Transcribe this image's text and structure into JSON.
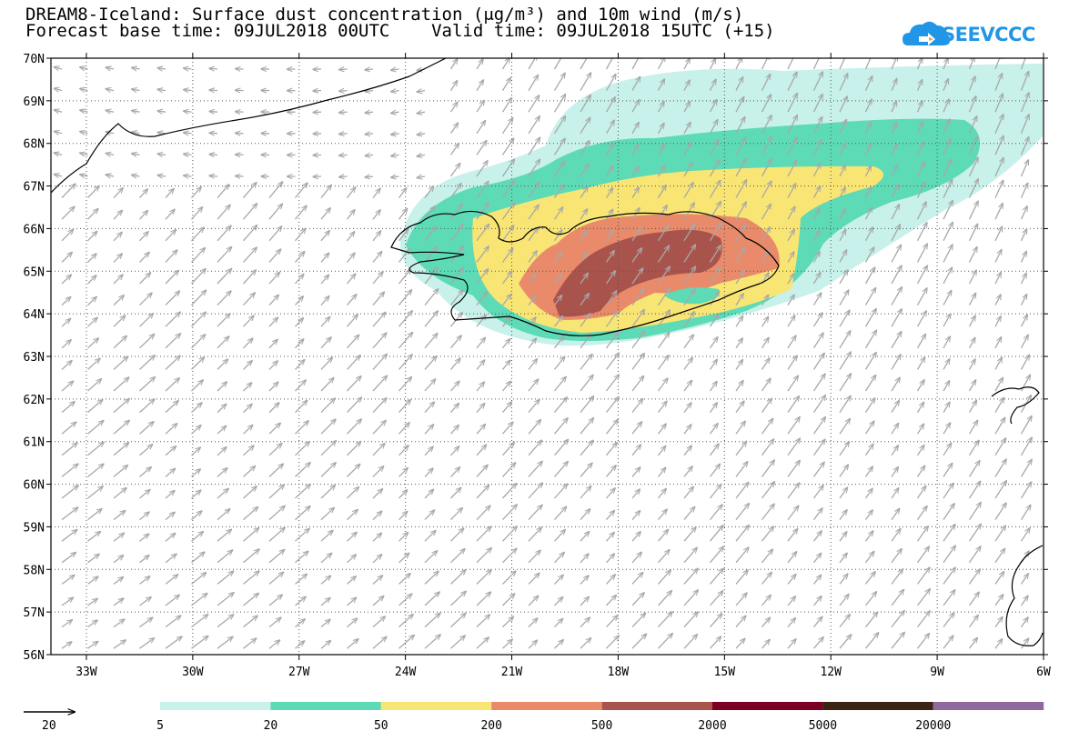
{
  "header": {
    "line1": "DREAM8-Iceland: Surface dust concentration (μg/m³) and 10m wind (m/s)",
    "line2": "Forecast base time: 09JUL2018 00UTC    Valid time: 09JUL2018 15UTC (+15)"
  },
  "logo": {
    "text": "SEEVCCC",
    "icon": "cloud-logo-icon",
    "color": "#2196e6"
  },
  "map": {
    "lon_range": [
      -34,
      -6
    ],
    "lat_range": [
      56,
      70
    ],
    "lat_labels": [
      "70N",
      "69N",
      "68N",
      "67N",
      "66N",
      "65N",
      "64N",
      "63N",
      "62N",
      "61N",
      "60N",
      "59N",
      "58N",
      "57N",
      "56N"
    ],
    "lon_labels": [
      "33W",
      "30W",
      "27W",
      "24W",
      "21W",
      "18W",
      "15W",
      "12W",
      "9W",
      "6W"
    ],
    "wind_arrow_color": "#a8a8a8"
  },
  "wind_legend": {
    "reference_value": "20"
  },
  "colorbar": {
    "colors": [
      "#c7f1ea",
      "#5ddbb6",
      "#f8e574",
      "#e98a6a",
      "#a8544c",
      "#7c0025",
      "#3a2412",
      "#9068a0"
    ],
    "labels": [
      "5",
      "20",
      "50",
      "200",
      "500",
      "2000",
      "5000",
      "20000"
    ]
  }
}
